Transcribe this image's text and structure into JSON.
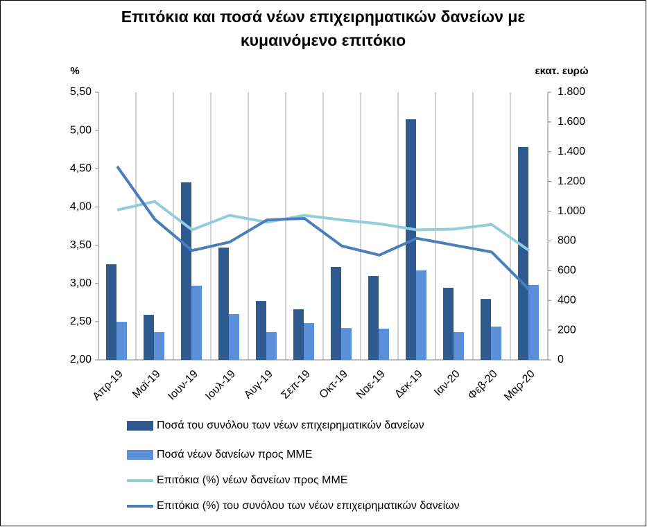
{
  "chart_data": {
    "type": "bar-line",
    "title": [
      "Επιτόκια και ποσά νέων επιχειρηματικών δανείων με",
      "κυμαινόμενο επιτόκιο"
    ],
    "y_label": "%",
    "y2_label": "εκατ. ευρώ",
    "categories": [
      "Απρ-19",
      "Μαϊ-19",
      "Ιουν-19",
      "Ιουλ-19",
      "Αυγ-19",
      "Σεπ-19",
      "Οκτ-19",
      "Νοε-19",
      "Δεκ-19",
      "Ιαν-20",
      "Φεβ-20",
      "Μαρ-20"
    ],
    "series": [
      {
        "name": "Ποσά του συνόλου των νέων επιχειρηματικών δανείων",
        "type": "bar",
        "axis": "y2",
        "color": "#2f5a8f",
        "values": [
          643,
          303,
          1194,
          755,
          396,
          340,
          625,
          564,
          1618,
          485,
          410,
          1432
        ]
      },
      {
        "name": "Ποσά νέων δανείων προς ΜΜΕ",
        "type": "bar",
        "axis": "y2",
        "color": "#5b8fd8",
        "values": [
          256,
          187,
          499,
          308,
          187,
          247,
          214,
          210,
          602,
          187,
          224,
          504
        ]
      },
      {
        "name": "Επιτόκια (%) νέων δανείων προς ΜΜΕ",
        "type": "line",
        "axis": "y",
        "color": "#92cddc",
        "values": [
          3.96,
          4.07,
          3.7,
          3.89,
          3.8,
          3.89,
          3.83,
          3.78,
          3.7,
          3.71,
          3.77,
          3.43
        ]
      },
      {
        "name": "Επιτόκια (%) του συνόλου των νέων επιχειρηματικών δανείων",
        "type": "line",
        "axis": "y",
        "color": "#4a7ebb",
        "values": [
          4.53,
          3.84,
          3.43,
          3.54,
          3.83,
          3.85,
          3.49,
          3.37,
          3.59,
          3.5,
          3.41,
          2.92
        ]
      }
    ],
    "ylim": [
      2,
      5.5
    ],
    "yticks": [
      {
        "value": 2,
        "label": "2,00"
      },
      {
        "value": 2.5,
        "label": "2,50"
      },
      {
        "value": 3,
        "label": "3,00"
      },
      {
        "value": 3.5,
        "label": "3,50"
      },
      {
        "value": 4,
        "label": "4,00"
      },
      {
        "value": 4.5,
        "label": "4,50"
      },
      {
        "value": 5,
        "label": "5,00"
      },
      {
        "value": 5.5,
        "label": "5,50"
      }
    ],
    "y2lim": [
      0,
      1800
    ],
    "y2ticks": [
      0,
      200,
      400,
      600,
      800,
      {
        "value": 1000,
        "label": "1.000"
      },
      {
        "value": 1200,
        "label": "1.200"
      },
      {
        "value": 1400,
        "label": "1.400"
      },
      {
        "value": 1600,
        "label": "1.600"
      },
      {
        "value": 1800,
        "label": "1.800"
      }
    ]
  }
}
